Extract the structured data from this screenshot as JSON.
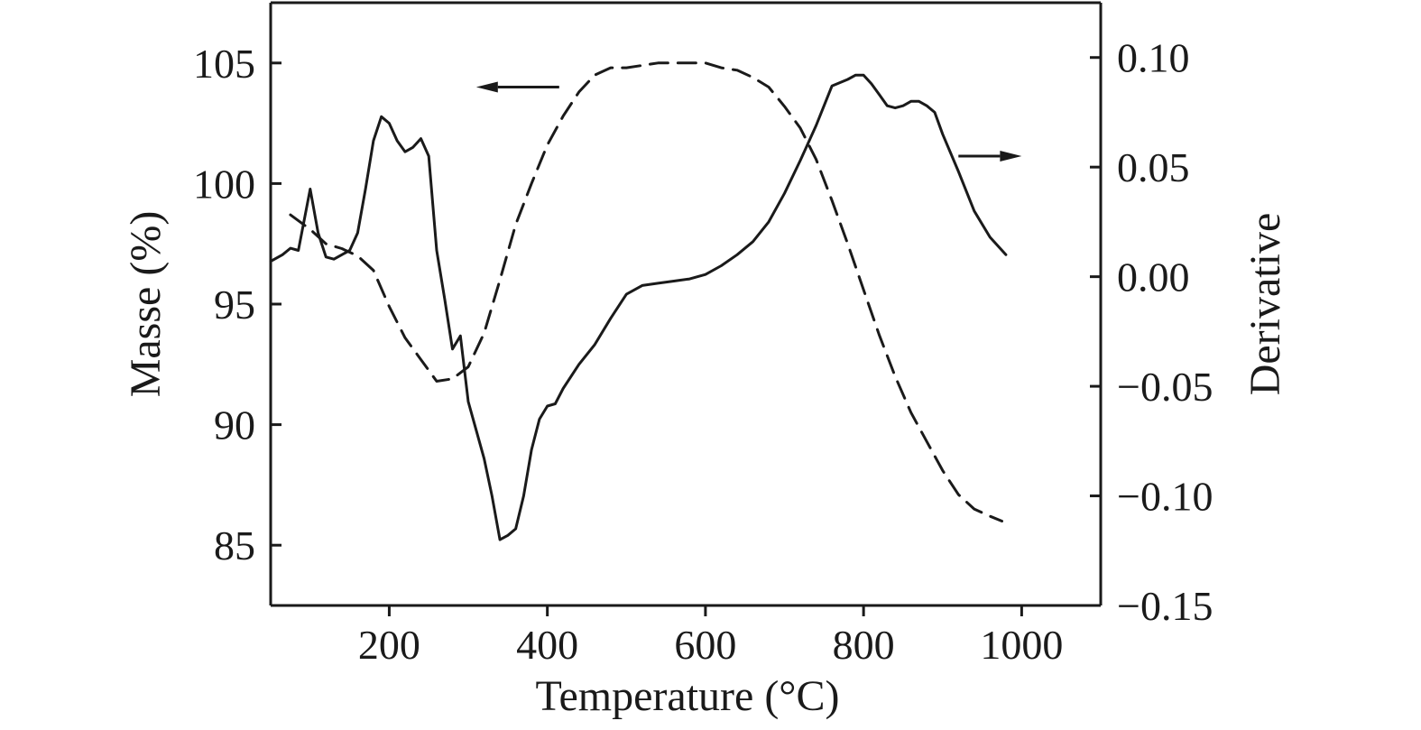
{
  "chart_data": {
    "type": "line",
    "xlabel": "Temperature (°C)",
    "ylabel_left": "Masse (%)",
    "ylabel_right": "Derivative",
    "xlim": [
      50,
      1100
    ],
    "ylim_left": [
      82.5,
      107.5
    ],
    "ylim_right": [
      -0.15,
      0.125
    ],
    "x_ticks": [
      {
        "value": 200,
        "label": "200"
      },
      {
        "value": 400,
        "label": "400"
      },
      {
        "value": 600,
        "label": "600"
      },
      {
        "value": 800,
        "label": "800"
      },
      {
        "value": 1000,
        "label": "1000"
      }
    ],
    "y_left_ticks": [
      {
        "value": 85,
        "label": "85"
      },
      {
        "value": 90,
        "label": "90"
      },
      {
        "value": 95,
        "label": "95"
      },
      {
        "value": 100,
        "label": "100"
      },
      {
        "value": 105,
        "label": "105"
      }
    ],
    "y_right_ticks": [
      {
        "value": -0.15,
        "label": "−0.15"
      },
      {
        "value": -0.1,
        "label": "−0.10"
      },
      {
        "value": -0.05,
        "label": "−0.05"
      },
      {
        "value": 0.0,
        "label": "0.00"
      },
      {
        "value": 0.05,
        "label": "0.05"
      },
      {
        "value": 0.1,
        "label": "0.10"
      }
    ],
    "grid": false,
    "legend": "none",
    "series": [
      {
        "axis": "left",
        "style": "dashed",
        "x": [
          75,
          100,
          120,
          140,
          160,
          180,
          200,
          220,
          240,
          260,
          280,
          300,
          320,
          340,
          360,
          380,
          400,
          420,
          440,
          460,
          480,
          500,
          520,
          540,
          560,
          580,
          600,
          620,
          640,
          660,
          680,
          700,
          720,
          740,
          760,
          780,
          800,
          820,
          840,
          860,
          880,
          900,
          920,
          940,
          960,
          975
        ],
        "y": [
          98.7,
          98.1,
          97.5,
          97.3,
          97.0,
          96.4,
          94.9,
          93.6,
          92.7,
          91.8,
          91.9,
          92.4,
          93.8,
          96.0,
          98.3,
          100.0,
          101.6,
          102.8,
          103.8,
          104.5,
          104.8,
          104.8,
          104.9,
          105.0,
          105.0,
          105.0,
          105.0,
          104.8,
          104.7,
          104.4,
          104.0,
          103.2,
          102.3,
          101.0,
          99.3,
          97.5,
          95.6,
          93.7,
          92.0,
          90.5,
          89.3,
          88.1,
          87.1,
          86.5,
          86.2,
          86.0
        ]
      },
      {
        "axis": "right",
        "style": "solid",
        "x": [
          50,
          65,
          75,
          85,
          100,
          110,
          120,
          130,
          140,
          150,
          160,
          170,
          180,
          190,
          200,
          210,
          220,
          230,
          240,
          250,
          260,
          270,
          280,
          290,
          300,
          310,
          320,
          330,
          340,
          350,
          360,
          370,
          380,
          390,
          400,
          410,
          420,
          440,
          460,
          480,
          500,
          520,
          540,
          560,
          580,
          600,
          620,
          640,
          660,
          680,
          700,
          720,
          740,
          760,
          780,
          790,
          800,
          810,
          820,
          830,
          840,
          850,
          860,
          870,
          880,
          890,
          900,
          920,
          940,
          960,
          980
        ],
        "y": [
          0.007,
          0.01,
          0.013,
          0.012,
          0.04,
          0.02,
          0.009,
          0.008,
          0.01,
          0.012,
          0.02,
          0.04,
          0.062,
          0.073,
          0.07,
          0.062,
          0.057,
          0.059,
          0.063,
          0.055,
          0.012,
          -0.01,
          -0.033,
          -0.027,
          -0.057,
          -0.07,
          -0.083,
          -0.1,
          -0.12,
          -0.118,
          -0.115,
          -0.1,
          -0.079,
          -0.065,
          -0.059,
          -0.058,
          -0.051,
          -0.04,
          -0.031,
          -0.019,
          -0.008,
          -0.004,
          -0.003,
          -0.002,
          -0.001,
          0.001,
          0.005,
          0.01,
          0.016,
          0.025,
          0.038,
          0.053,
          0.069,
          0.087,
          0.09,
          0.092,
          0.092,
          0.088,
          0.083,
          0.078,
          0.077,
          0.078,
          0.08,
          0.08,
          0.078,
          0.075,
          0.065,
          0.048,
          0.03,
          0.018,
          0.01
        ]
      }
    ],
    "annotations": [
      {
        "type": "arrow",
        "direction": "left",
        "axis": "left",
        "x_from": 415,
        "x_to": 310,
        "y": 104.0
      },
      {
        "type": "arrow",
        "direction": "right",
        "axis": "right",
        "x_from": 920,
        "x_to": 1000,
        "y": 0.055
      }
    ]
  }
}
